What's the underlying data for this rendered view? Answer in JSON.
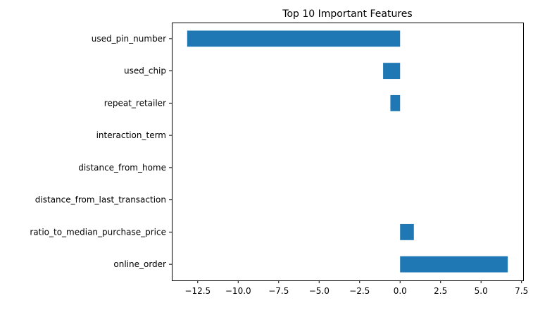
{
  "chart_data": {
    "type": "bar",
    "orientation": "horizontal",
    "title": "Top 10 Important Features",
    "xlabel": "",
    "ylabel": "",
    "categories": [
      "online_order",
      "ratio_to_median_purchase_price",
      "distance_from_last_transaction",
      "distance_from_home",
      "interaction_term",
      "repeat_retailer",
      "used_chip",
      "used_pin_number"
    ],
    "values": [
      6.65,
      0.85,
      0.0,
      0.0,
      0.0,
      -0.6,
      -1.05,
      -13.15
    ],
    "xlim": [
      -14.1,
      7.6
    ],
    "xticks": [
      -12.5,
      -10.0,
      -7.5,
      -5.0,
      -2.5,
      0.0,
      2.5,
      5.0,
      7.5
    ],
    "xtick_labels": [
      "−12.5",
      "−10.0",
      "−7.5",
      "−5.0",
      "−2.5",
      "0.0",
      "2.5",
      "5.0",
      "7.5"
    ],
    "grid": false,
    "bar_color": "#1f77b4"
  }
}
